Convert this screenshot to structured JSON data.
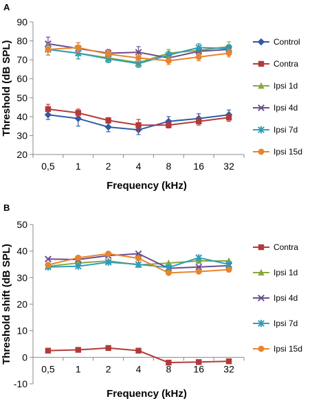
{
  "chart_data": [
    {
      "panel_label": "A",
      "type": "line",
      "xlabel": "Frequency (kHz)",
      "ylabel": "Threshold (dB SPL)",
      "categories": [
        "0,5",
        "1",
        "2",
        "4",
        "8",
        "16",
        "32"
      ],
      "ylim": [
        20,
        90
      ],
      "yticks": [
        20,
        30,
        40,
        50,
        60,
        70,
        80,
        90
      ],
      "grid": false,
      "legend_position": "right",
      "series": [
        {
          "name": "Control",
          "color": "#2E5AA8",
          "marker": "diamond",
          "values": [
            41,
            39,
            34.5,
            33,
            37.5,
            39,
            41
          ],
          "errors": [
            2.5,
            4,
            2.5,
            2.5,
            2.5,
            2.5,
            2.5
          ]
        },
        {
          "name": "Contra",
          "color": "#B23A3A",
          "marker": "square",
          "values": [
            44,
            42,
            38,
            35.5,
            35.5,
            37.5,
            39.5
          ],
          "errors": [
            2.5,
            2,
            1.5,
            3,
            1.5,
            2,
            2
          ]
        },
        {
          "name": "Ipsi 1d",
          "color": "#86A83F",
          "marker": "triangle",
          "values": [
            75.5,
            73.5,
            71,
            68.5,
            73.5,
            75,
            77
          ],
          "errors": [
            3,
            3,
            2,
            2,
            2,
            2,
            2.5
          ]
        },
        {
          "name": "Ipsi 4d",
          "color": "#6A4B8E",
          "marker": "x",
          "values": [
            78.5,
            76,
            73.5,
            74,
            71,
            74.5,
            75.5
          ],
          "errors": [
            3.5,
            3,
            2,
            3,
            2,
            2,
            2
          ]
        },
        {
          "name": "Ipsi 7d",
          "color": "#2E9DB8",
          "marker": "asterisk",
          "values": [
            75.5,
            73.5,
            70.5,
            68,
            72.5,
            76.5,
            76
          ],
          "errors": [
            3,
            3,
            2,
            2,
            2,
            2,
            2
          ]
        },
        {
          "name": "Ipsi 15d",
          "color": "#E8842D",
          "marker": "circle",
          "values": [
            75.5,
            76.5,
            73,
            71,
            69.5,
            71.5,
            73.5
          ],
          "errors": [
            3,
            2.5,
            2,
            2,
            2,
            2,
            2
          ]
        }
      ]
    },
    {
      "panel_label": "B",
      "type": "line",
      "xlabel": "Frequency (kHz)",
      "ylabel": "Threshold shift (dB SPL)",
      "categories": [
        "0,5",
        "1",
        "2",
        "4",
        "8",
        "16",
        "32"
      ],
      "ylim": [
        -10,
        50
      ],
      "yticks": [
        -10,
        0,
        10,
        20,
        30,
        40,
        50
      ],
      "grid": false,
      "legend_position": "right",
      "series": [
        {
          "name": "Contra",
          "color": "#B23A3A",
          "marker": "square",
          "values": [
            2.5,
            2.8,
            3.5,
            2.5,
            -2,
            -1.8,
            -1.5
          ]
        },
        {
          "name": "Ipsi 1d",
          "color": "#86A83F",
          "marker": "triangle",
          "values": [
            34.3,
            35.5,
            36.3,
            34.8,
            35.5,
            36.3,
            36.3
          ]
        },
        {
          "name": "Ipsi 4d",
          "color": "#6A4B8E",
          "marker": "x",
          "values": [
            37,
            36.8,
            38.3,
            39,
            33.5,
            34,
            34.5
          ]
        },
        {
          "name": "Ipsi 7d",
          "color": "#2E9DB8",
          "marker": "asterisk",
          "values": [
            34,
            34.3,
            35.8,
            35,
            33.8,
            37.5,
            35
          ]
        },
        {
          "name": "Ipsi 15d",
          "color": "#E8842D",
          "marker": "circle",
          "values": [
            34.8,
            37.5,
            39,
            37.3,
            31.8,
            32.3,
            33
          ]
        }
      ]
    }
  ]
}
